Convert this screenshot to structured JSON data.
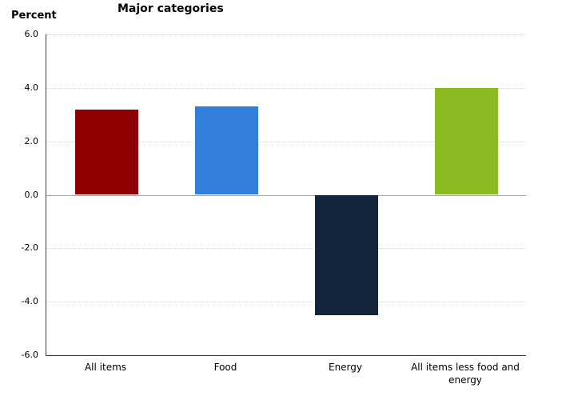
{
  "page": {
    "background": "#ffffff"
  },
  "chart_data": {
    "type": "bar",
    "title": "Major categories",
    "ylabel": "Percent",
    "categories": [
      "All items",
      "Food",
      "Energy",
      "All items less food and energy"
    ],
    "values": [
      3.2,
      3.3,
      -4.5,
      4.0
    ],
    "bar_colors": [
      "#8e0000",
      "#317fd9",
      "#12253a",
      "#8bba23"
    ],
    "ylim": [
      -6.0,
      6.0
    ],
    "ytick_interval": 2.0,
    "yticks": [
      {
        "label": "6.0",
        "value": 6.0
      },
      {
        "label": "4.0",
        "value": 4.0
      },
      {
        "label": "2.0",
        "value": 2.0
      },
      {
        "label": "0.0",
        "value": 0.0
      },
      {
        "label": "-2.0",
        "value": -2.0
      },
      {
        "label": "-4.0",
        "value": -4.0
      },
      {
        "label": "-6.0",
        "value": -6.0
      }
    ],
    "grid": "horizontal-dotted",
    "legend": "none",
    "grid_color": "#d9d9d9",
    "zero_line_color": "#a8a8a8",
    "axis_color": "#3d3d3d",
    "text_color": "#000000"
  }
}
